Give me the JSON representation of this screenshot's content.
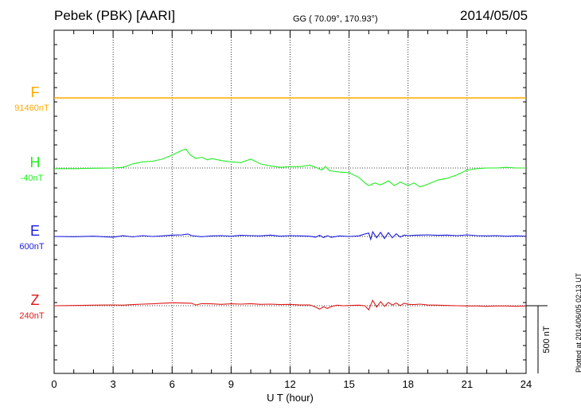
{
  "header": {
    "station": "Pebek (PBK)  [AARI]",
    "coords": "GG ( 70.09°, 170.93°)",
    "date": "2014/05/05"
  },
  "plotted_note": "Plotted at 2014/06/05 02:13 UT",
  "chart_data": {
    "type": "line",
    "title": "Pebek (PBK)  [AARI]",
    "xlabel": "U T (hour)",
    "xlim": [
      0,
      24
    ],
    "xticks": [
      "0",
      "3",
      "6",
      "9",
      "12",
      "15",
      "18",
      "21",
      "24"
    ],
    "grid": true,
    "scale_bar": {
      "label": "500 nT",
      "value_nT": 500
    },
    "series": [
      {
        "name": "F",
        "baseline_label": "91460nT",
        "color": "#ffaa00",
        "x": [
          0,
          24
        ],
        "y": [
          0,
          0
        ]
      },
      {
        "name": "H",
        "baseline_label": "-40nT",
        "color": "#22ee22",
        "x": [
          0,
          1,
          2,
          3,
          3.5,
          4,
          4.5,
          5,
          5.5,
          6,
          6.5,
          6.7,
          6.9,
          7.2,
          7.5,
          7.8,
          8,
          8.5,
          9,
          9.5,
          10,
          10.5,
          11,
          11.5,
          12,
          12.5,
          13,
          13.4,
          13.6,
          13.8,
          14,
          14.5,
          15,
          15.5,
          15.8,
          16,
          16.3,
          16.6,
          17,
          17.3,
          17.6,
          18,
          18.3,
          18.6,
          19,
          19.5,
          20,
          20.5,
          21,
          21.5,
          22,
          22.5,
          23,
          23.5,
          24
        ],
        "y": [
          -5,
          -5,
          -2,
          0,
          5,
          30,
          45,
          50,
          65,
          95,
          130,
          140,
          100,
          70,
          80,
          60,
          70,
          55,
          45,
          40,
          65,
          30,
          15,
          5,
          10,
          10,
          20,
          0,
          -15,
          10,
          -20,
          -30,
          -35,
          -70,
          -110,
          -130,
          -110,
          -125,
          -95,
          -130,
          -105,
          -130,
          -110,
          -140,
          -120,
          -90,
          -75,
          -50,
          -15,
          -5,
          0,
          0,
          5,
          0,
          0
        ]
      },
      {
        "name": "E",
        "baseline_label": "600nT",
        "color": "#1a1adf",
        "x": [
          0,
          1,
          2,
          3,
          3.5,
          4,
          4.5,
          5,
          5.5,
          6,
          6.5,
          6.8,
          7,
          7.5,
          8,
          8.5,
          9,
          9.5,
          10,
          10.5,
          11,
          11.5,
          12,
          12.5,
          13,
          13.3,
          13.5,
          13.7,
          13.9,
          14.1,
          14.5,
          15,
          15.5,
          15.8,
          16,
          16.1,
          16.2,
          16.4,
          16.6,
          16.8,
          17,
          17.2,
          17.4,
          17.6,
          17.8,
          18,
          18.3,
          18.6,
          19,
          19.5,
          20,
          20.5,
          21,
          21.5,
          22,
          22.5,
          23,
          23.5,
          24
        ],
        "y": [
          0,
          -2,
          2,
          -5,
          5,
          -3,
          6,
          0,
          4,
          10,
          12,
          18,
          6,
          -2,
          4,
          6,
          2,
          8,
          6,
          4,
          10,
          2,
          6,
          4,
          2,
          -5,
          8,
          -8,
          5,
          -6,
          4,
          0,
          4,
          18,
          25,
          -22,
          35,
          -10,
          30,
          -15,
          28,
          -10,
          20,
          -5,
          10,
          6,
          8,
          10,
          12,
          8,
          10,
          6,
          12,
          6,
          4,
          6,
          2,
          4,
          2
        ]
      },
      {
        "name": "Z",
        "baseline_label": "240nT",
        "color": "#e01818",
        "x": [
          0,
          1,
          2,
          3,
          3.5,
          4,
          4.5,
          5,
          5.5,
          6,
          6.5,
          7,
          7.2,
          7.5,
          8,
          8.5,
          9,
          9.5,
          10,
          10.5,
          11,
          11.5,
          12,
          12.5,
          13,
          13.3,
          13.5,
          13.7,
          13.9,
          14.1,
          14.4,
          14.7,
          15,
          15.5,
          15.8,
          16,
          16.2,
          16.4,
          16.6,
          16.8,
          17,
          17.2,
          17.4,
          17.6,
          17.8,
          18,
          18.3,
          18.6,
          19,
          19.5,
          20,
          20.5,
          21,
          21.5,
          22,
          22.5,
          23,
          23.5,
          24
        ],
        "y": [
          0,
          2,
          4,
          6,
          4,
          8,
          12,
          14,
          18,
          22,
          20,
          18,
          5,
          15,
          14,
          10,
          14,
          12,
          15,
          10,
          12,
          8,
          10,
          5,
          6,
          -10,
          -25,
          -8,
          -20,
          -5,
          4,
          0,
          2,
          4,
          0,
          -30,
          40,
          -10,
          30,
          -5,
          25,
          5,
          20,
          0,
          18,
          10,
          8,
          12,
          5,
          4,
          2,
          0,
          -2,
          -2,
          -4,
          -2,
          -2,
          -4,
          -2
        ]
      }
    ]
  }
}
